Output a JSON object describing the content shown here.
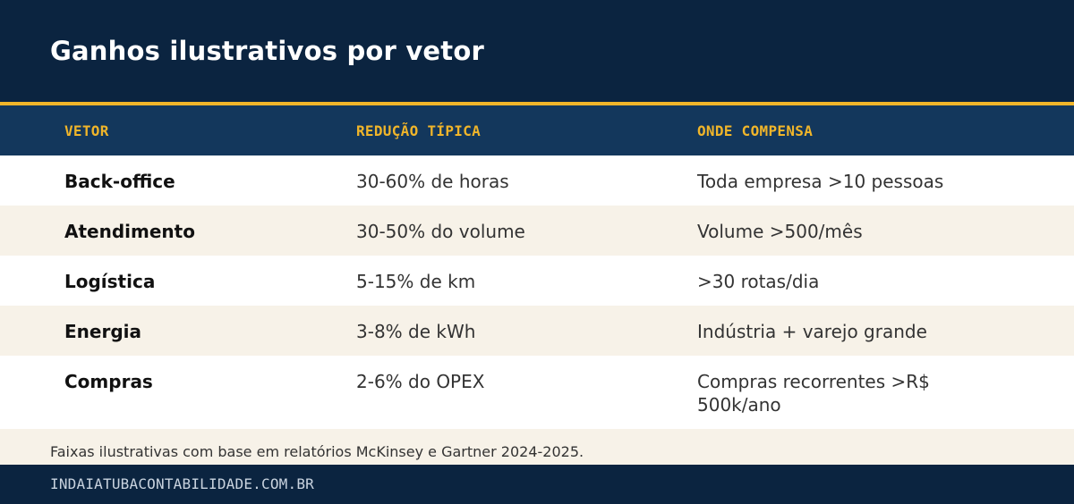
{
  "title": "Ganhos ilustrativos por vetor",
  "table": {
    "headers": [
      "VETOR",
      "REDUÇÃO TÍPICA",
      "ONDE COMPENSA"
    ],
    "rows": [
      [
        "Back-office",
        "30-60% de horas",
        "Toda empresa >10 pessoas"
      ],
      [
        "Atendimento",
        "30-50% do volume",
        "Volume >500/mês"
      ],
      [
        "Logística",
        "5-15% de km",
        ">30 rotas/dia"
      ],
      [
        "Energia",
        "3-8% de kWh",
        "Indústria + varejo grande"
      ],
      [
        "Compras",
        "2-6% do OPEX",
        "Compras recorrentes >R$ 500k/ano"
      ]
    ]
  },
  "footnote": "Faixas ilustrativas com base em relatórios McKinsey e Gartner 2024-2025.",
  "footer": {
    "site": "INDAIATUBACONTABILIDADE.COM.BR"
  },
  "colors": {
    "navy": "#0b2440",
    "header_row": "#13375c",
    "accent": "#f0b52a",
    "cream": "#f7f2e8"
  }
}
